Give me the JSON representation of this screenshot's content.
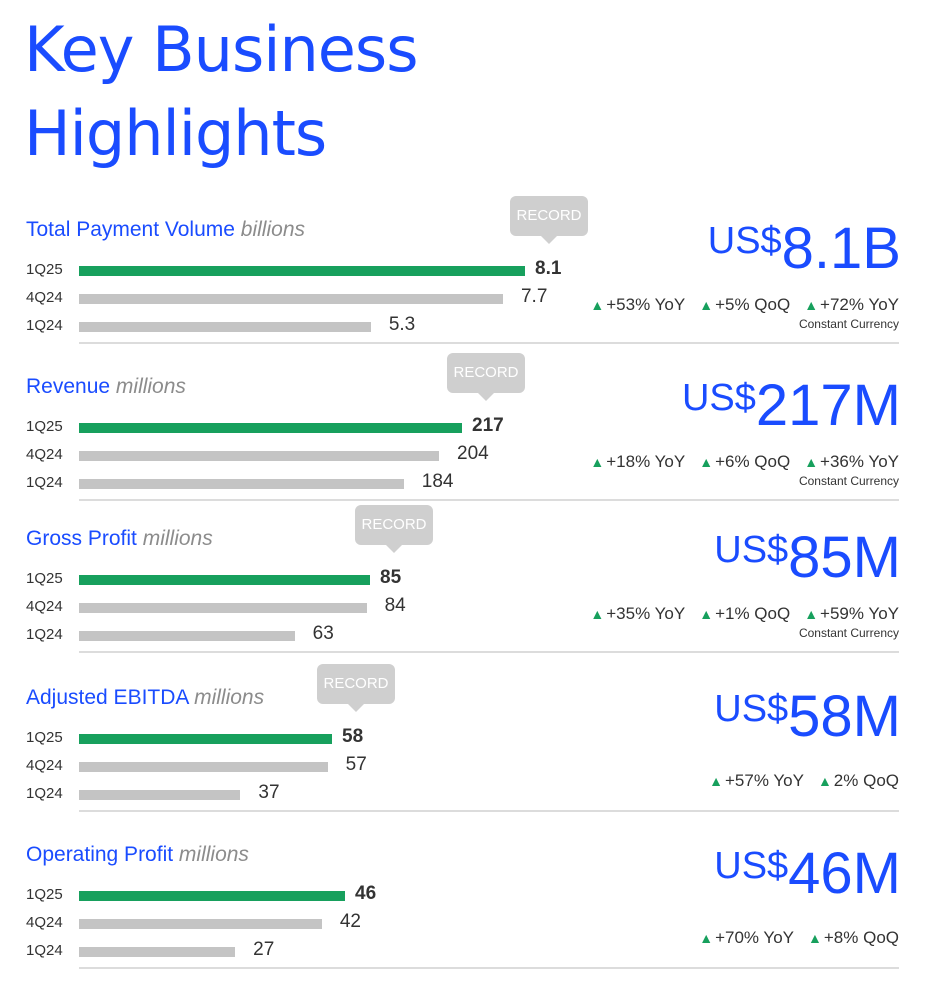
{
  "title": {
    "line1": "Key Business",
    "line2": "Highlights"
  },
  "chart_data": [
    {
      "type": "bar",
      "title": "Total Payment Volume",
      "unit": "billions",
      "categories": [
        "1Q25",
        "4Q24",
        "1Q24"
      ],
      "values": [
        8.1,
        7.7,
        5.3
      ],
      "value_labels": [
        "8.1",
        "7.7",
        "5.3"
      ],
      "badge": "RECORD",
      "headline": {
        "currency": "US$",
        "value": "8.1B"
      },
      "metrics": [
        {
          "arrow": "▲",
          "text": "+53% YoY"
        },
        {
          "arrow": "▲",
          "text": "+5% QoQ"
        },
        {
          "arrow": "▲",
          "text": "+72% YoY"
        }
      ],
      "note": "Constant Currency"
    },
    {
      "type": "bar",
      "title": "Revenue",
      "unit": "millions",
      "categories": [
        "1Q25",
        "4Q24",
        "1Q24"
      ],
      "values": [
        217,
        204,
        184
      ],
      "value_labels": [
        "217",
        "204",
        "184"
      ],
      "badge": "RECORD",
      "headline": {
        "currency": "US$",
        "value": "217M"
      },
      "metrics": [
        {
          "arrow": "▲",
          "text": "+18% YoY"
        },
        {
          "arrow": "▲",
          "text": "+6% QoQ"
        },
        {
          "arrow": "▲",
          "text": "+36% YoY"
        }
      ],
      "note": "Constant Currency"
    },
    {
      "type": "bar",
      "title": "Gross Profit",
      "unit": "millions",
      "categories": [
        "1Q25",
        "4Q24",
        "1Q24"
      ],
      "values": [
        85,
        84,
        63
      ],
      "value_labels": [
        "85",
        "84",
        "63"
      ],
      "badge": "RECORD",
      "headline": {
        "currency": "US$",
        "value": "85M"
      },
      "metrics": [
        {
          "arrow": "▲",
          "text": "+35% YoY"
        },
        {
          "arrow": "▲",
          "text": "+1% QoQ"
        },
        {
          "arrow": "▲",
          "text": "+59% YoY"
        }
      ],
      "note": "Constant Currency"
    },
    {
      "type": "bar",
      "title": "Adjusted EBITDA",
      "unit": "millions",
      "categories": [
        "1Q25",
        "4Q24",
        "1Q24"
      ],
      "values": [
        58,
        57,
        37
      ],
      "value_labels": [
        "58",
        "57",
        "37"
      ],
      "badge": "RECORD",
      "headline": {
        "currency": "US$",
        "value": "58M"
      },
      "metrics": [
        {
          "arrow": "▲",
          "text": "+57% YoY"
        },
        {
          "arrow": "▲",
          "text": "2% QoQ"
        }
      ],
      "note": ""
    },
    {
      "type": "bar",
      "title": "Operating Profit",
      "unit": "millions",
      "categories": [
        "1Q25",
        "4Q24",
        "1Q24"
      ],
      "values": [
        46,
        42,
        27
      ],
      "value_labels": [
        "46",
        "42",
        "27"
      ],
      "badge": "",
      "headline": {
        "currency": "US$",
        "value": "46M"
      },
      "metrics": [
        {
          "arrow": "▲",
          "text": "+70% YoY"
        },
        {
          "arrow": "▲",
          "text": "+8% QoQ"
        }
      ],
      "note": ""
    }
  ]
}
